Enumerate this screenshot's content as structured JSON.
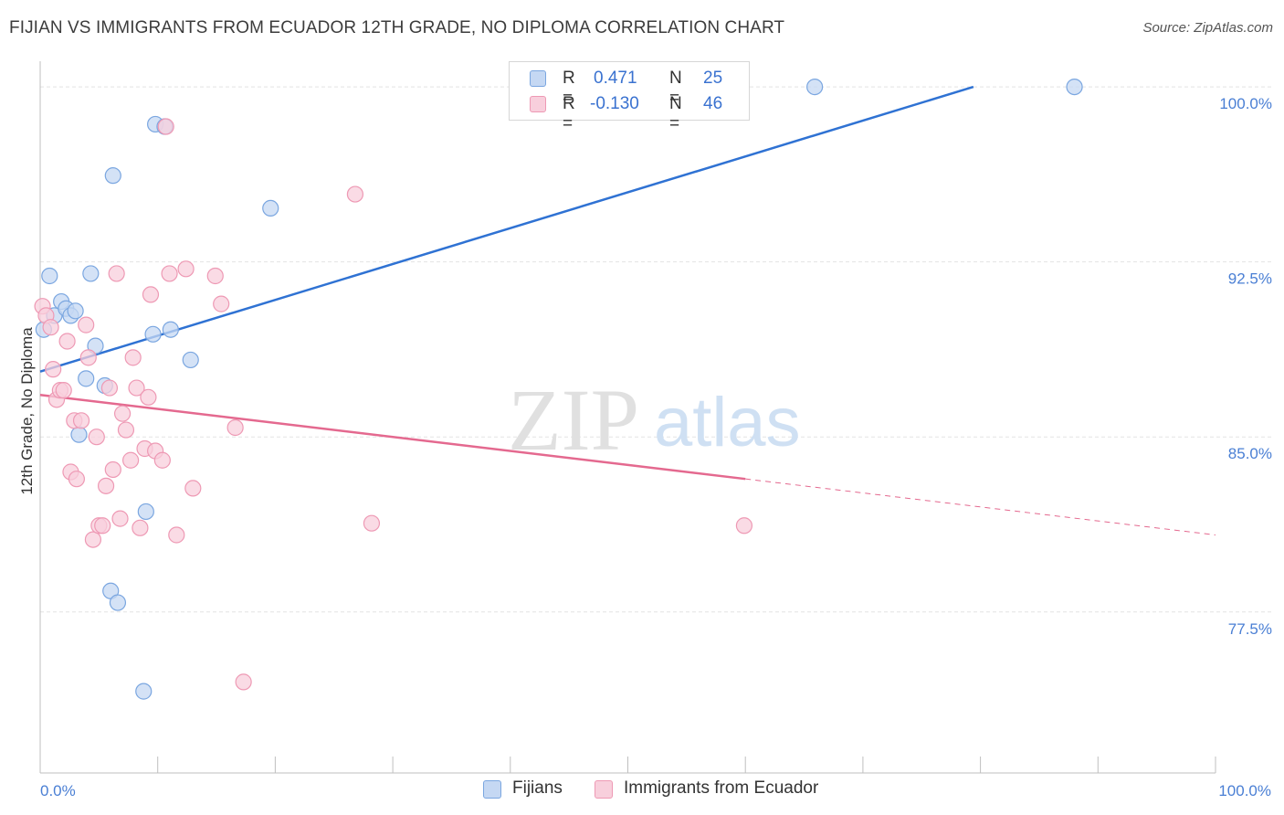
{
  "title": "FIJIAN VS IMMIGRANTS FROM ECUADOR 12TH GRADE, NO DIPLOMA CORRELATION CHART",
  "source": "Source: ZipAtlas.com",
  "watermark": {
    "zip": "ZIP",
    "atlas": "atlas"
  },
  "colors": {
    "blue_fill": "#c5d8f3",
    "blue_stroke": "#7aa6e0",
    "blue_line": "#2f72d3",
    "pink_fill": "#f8cfdc",
    "pink_stroke": "#ee99b4",
    "pink_line": "#e4698f",
    "grid": "#e3e3e3",
    "axis_text": "#4a7fd4"
  },
  "legend": {
    "rows": [
      {
        "r_label": "R =",
        "r_value": "0.471",
        "n_label": "N =",
        "n_value": "25"
      },
      {
        "r_label": "R =",
        "r_value": "-0.130",
        "n_label": "N =",
        "n_value": "46"
      }
    ]
  },
  "bottom_legend": {
    "series1": "Fijians",
    "series2": "Immigrants from Ecuador"
  },
  "chart_data": {
    "type": "scatter",
    "title": "FIJIAN VS IMMIGRANTS FROM ECUADOR 12TH GRADE, NO DIPLOMA CORRELATION CHART",
    "xlabel": "",
    "ylabel": "12th Grade, No Diploma",
    "xlim": [
      0,
      100
    ],
    "ylim": [
      70.6,
      101.1
    ],
    "x_tick_labels": [
      "0.0%",
      "100.0%"
    ],
    "y_ticks": [
      77.5,
      85.0,
      92.5,
      100.0
    ],
    "y_tick_labels": [
      "77.5%",
      "85.0%",
      "92.5%",
      "100.0%"
    ],
    "grid": true,
    "legend_position": "top-center",
    "series": [
      {
        "name": "Fijians",
        "color": "#7aa6e0",
        "points": [
          [
            0.3,
            89.6
          ],
          [
            0.8,
            91.9
          ],
          [
            1.2,
            90.2
          ],
          [
            1.8,
            90.8
          ],
          [
            2.2,
            90.5
          ],
          [
            2.6,
            90.2
          ],
          [
            3.0,
            90.4
          ],
          [
            3.3,
            85.1
          ],
          [
            3.9,
            87.5
          ],
          [
            4.3,
            92.0
          ],
          [
            4.7,
            88.9
          ],
          [
            5.5,
            87.2
          ],
          [
            6.0,
            78.4
          ],
          [
            6.2,
            96.2
          ],
          [
            6.6,
            77.9
          ],
          [
            8.8,
            74.1
          ],
          [
            9.0,
            81.8
          ],
          [
            9.6,
            89.4
          ],
          [
            9.8,
            98.4
          ],
          [
            10.6,
            98.3
          ],
          [
            11.1,
            89.6
          ],
          [
            12.8,
            88.3
          ],
          [
            19.6,
            94.8
          ],
          [
            65.9,
            100.0
          ],
          [
            88.0,
            100.0
          ]
        ],
        "trend": {
          "x0": 0,
          "y0": 87.8,
          "x1": 79.4,
          "y1": 100.0
        }
      },
      {
        "name": "Immigrants from Ecuador",
        "color": "#ee99b4",
        "points": [
          [
            0.2,
            90.6
          ],
          [
            0.5,
            90.2
          ],
          [
            0.9,
            89.7
          ],
          [
            1.1,
            87.9
          ],
          [
            1.4,
            86.6
          ],
          [
            1.7,
            87.0
          ],
          [
            2.0,
            87.0
          ],
          [
            2.3,
            89.1
          ],
          [
            2.6,
            83.5
          ],
          [
            2.9,
            85.7
          ],
          [
            3.1,
            83.2
          ],
          [
            3.5,
            85.7
          ],
          [
            3.9,
            89.8
          ],
          [
            4.1,
            88.4
          ],
          [
            4.5,
            80.6
          ],
          [
            4.8,
            85.0
          ],
          [
            5.0,
            81.2
          ],
          [
            5.3,
            81.2
          ],
          [
            5.6,
            82.9
          ],
          [
            5.9,
            87.1
          ],
          [
            6.2,
            83.6
          ],
          [
            6.5,
            92.0
          ],
          [
            6.8,
            81.5
          ],
          [
            7.0,
            86.0
          ],
          [
            7.3,
            85.3
          ],
          [
            7.7,
            84.0
          ],
          [
            7.9,
            88.4
          ],
          [
            8.2,
            87.1
          ],
          [
            8.5,
            81.1
          ],
          [
            8.9,
            84.5
          ],
          [
            9.2,
            86.7
          ],
          [
            9.4,
            91.1
          ],
          [
            9.8,
            84.4
          ],
          [
            10.4,
            84.0
          ],
          [
            10.7,
            98.3
          ],
          [
            11.0,
            92.0
          ],
          [
            11.6,
            80.8
          ],
          [
            12.4,
            92.2
          ],
          [
            13.0,
            82.8
          ],
          [
            14.9,
            91.9
          ],
          [
            15.4,
            90.7
          ],
          [
            16.6,
            85.4
          ],
          [
            17.3,
            74.5
          ],
          [
            26.8,
            95.4
          ],
          [
            28.2,
            81.3
          ],
          [
            59.9,
            81.2
          ]
        ],
        "trend": {
          "x0": 0,
          "y0": 86.8,
          "x1": 60.0,
          "y1": 83.2,
          "dashed_to_x": 100,
          "dashed_to_y": 80.8
        }
      }
    ]
  }
}
